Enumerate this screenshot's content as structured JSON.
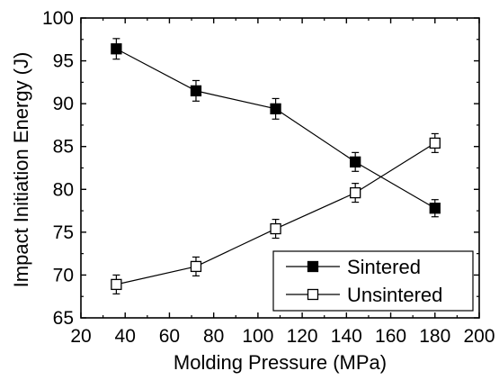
{
  "chart_data": {
    "type": "line",
    "xlabel": "Molding Pressure (MPa)",
    "ylabel": "Impact Initiation  Energy (J)",
    "xlim": [
      20,
      200
    ],
    "ylim": [
      65,
      100
    ],
    "xticks": [
      20,
      40,
      60,
      80,
      100,
      120,
      140,
      160,
      180,
      200
    ],
    "yticks": [
      65,
      70,
      75,
      80,
      85,
      90,
      95,
      100
    ],
    "grid": false,
    "legend_position": "bottom-right",
    "x": [
      36,
      72,
      108,
      144,
      180
    ],
    "series": [
      {
        "name": "Sintered",
        "marker": "filled-square",
        "values": [
          96.4,
          91.5,
          89.4,
          83.2,
          77.8
        ],
        "errors": [
          1.2,
          1.2,
          1.2,
          1.1,
          1.0
        ]
      },
      {
        "name": "Unsintered",
        "marker": "open-square",
        "values": [
          68.9,
          71.0,
          75.4,
          79.6,
          85.4
        ],
        "errors": [
          1.1,
          1.1,
          1.1,
          1.1,
          1.1
        ]
      }
    ]
  }
}
